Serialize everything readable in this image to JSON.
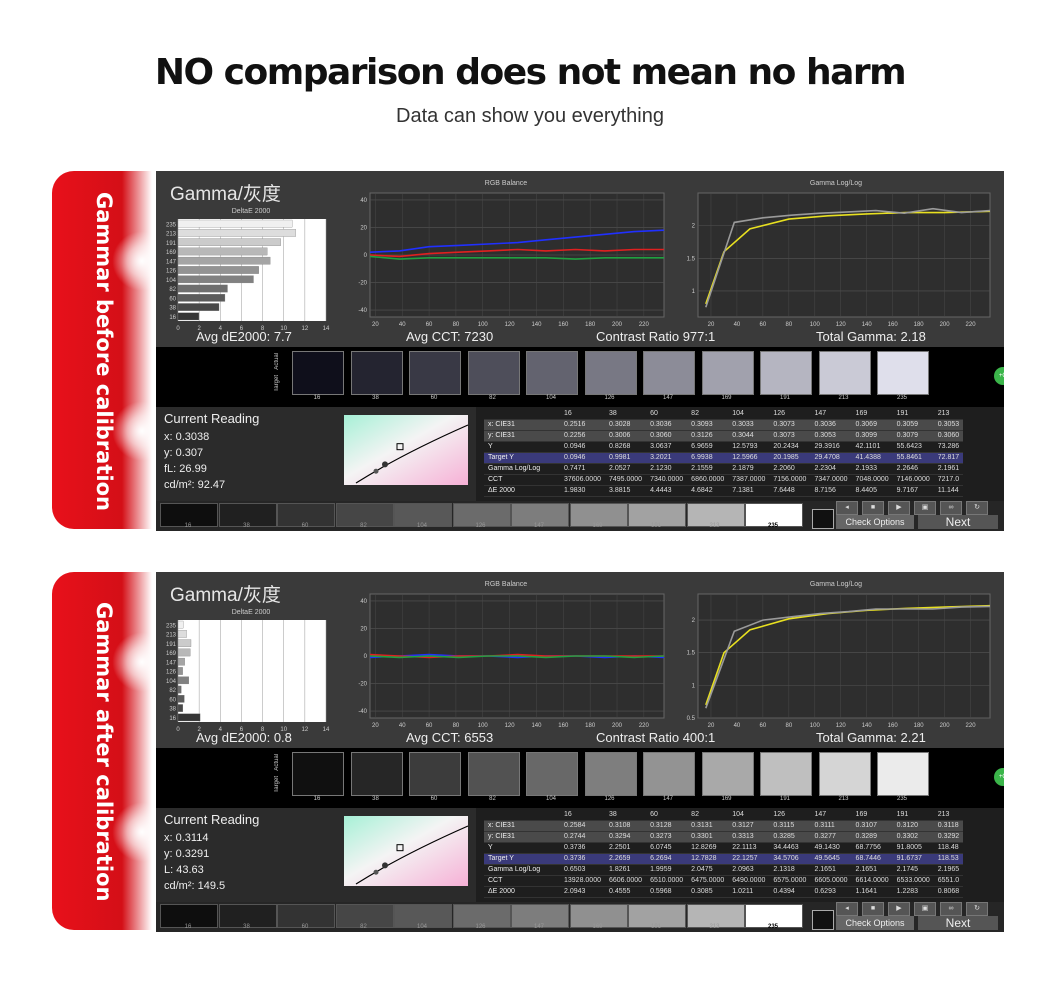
{
  "headline": "NO comparison does not mean  no harm",
  "subline": "Data can show you everything",
  "sections": [
    {
      "label": "Gammar before calibration",
      "title": "Gamma/灰度",
      "de_chart_title": "DeltaE 2000",
      "rgb_title": "RGB Balance",
      "gamma_title": "Gamma Log/Log",
      "stats": {
        "de": "Avg dE2000: 7.7",
        "cct": "Avg CCT: 7230",
        "contrast": "Contrast Ratio  977:1",
        "gamma": "Total Gamma: 2.18"
      },
      "reading": {
        "title": "Current Reading",
        "x": "x: 0.3038",
        "y": "y: 0.307",
        "fl": "fL: 26.99",
        "cd": "cd/m²: 92.47"
      },
      "swatch_label_actual": "Actual",
      "swatch_label_target": "Target",
      "swatch_levels": [
        "16",
        "38",
        "60",
        "82",
        "104",
        "126",
        "147",
        "169",
        "191",
        "213",
        "235"
      ],
      "table_header": [
        "16",
        "38",
        "60",
        "82",
        "104",
        "126",
        "147",
        "169",
        "191",
        "213"
      ],
      "table_rows": [
        {
          "label": "x: CIE31",
          "values": [
            "0.2516",
            "0.3028",
            "0.3036",
            "0.3093",
            "0.3033",
            "0.3073",
            "0.3036",
            "0.3069",
            "0.3059",
            "0.3053"
          ]
        },
        {
          "label": "y: CIE31",
          "values": [
            "0.2256",
            "0.3006",
            "0.3060",
            "0.3126",
            "0.3044",
            "0.3073",
            "0.3053",
            "0.3099",
            "0.3079",
            "0.3060"
          ]
        },
        {
          "label": "Y",
          "values": [
            "0.0946",
            "0.8268",
            "3.0637",
            "6.9659",
            "12.5793",
            "20.2434",
            "29.3916",
            "42.1101",
            "55.6423",
            "73.286"
          ]
        },
        {
          "label": "Target Y",
          "values": [
            "0.0946",
            "0.9981",
            "3.2021",
            "6.9938",
            "12.5966",
            "20.1985",
            "29.4708",
            "41.4388",
            "55.8461",
            "72.817"
          ]
        },
        {
          "label": "Gamma Log/Log",
          "values": [
            "0.7471",
            "2.0527",
            "2.1230",
            "2.1559",
            "2.1879",
            "2.2060",
            "2.2304",
            "2.1933",
            "2.2646",
            "2.1961"
          ]
        },
        {
          "label": "CCT",
          "values": [
            "37606.0000",
            "7495.0000",
            "7340.0000",
            "6860.0000",
            "7387.0000",
            "7156.0000",
            "7347.0000",
            "7048.0000",
            "7146.0000",
            "7217.0"
          ]
        },
        {
          "label": "ΔE 2000",
          "values": [
            "1.9830",
            "3.8815",
            "4.4443",
            "4.6842",
            "7.1381",
            "7.6448",
            "8.7156",
            "8.4405",
            "9.7167",
            "11.144"
          ]
        }
      ],
      "bottom_levels": [
        "16",
        "38",
        "60",
        "82",
        "104",
        "126",
        "147",
        "169",
        "191",
        "213",
        "235"
      ],
      "check_options": "Check Options",
      "next": "Next",
      "green_badge": "+G",
      "chart_data": {
        "de_bars": {
          "type": "bar",
          "categories": [
            "16",
            "38",
            "60",
            "82",
            "104",
            "126",
            "147",
            "169",
            "191",
            "213",
            "235"
          ],
          "values": [
            1.98,
            3.88,
            4.44,
            4.68,
            7.14,
            7.64,
            8.72,
            8.44,
            9.72,
            11.14,
            10.8
          ],
          "xlim": [
            0,
            14
          ],
          "xticks": [
            "0",
            "2",
            "4",
            "6",
            "8",
            "10",
            "12",
            "14"
          ]
        },
        "rgb": {
          "type": "line",
          "yticks": [
            "40",
            "20",
            "0",
            "-20",
            "-40"
          ],
          "xticks": [
            "20",
            "40",
            "60",
            "80",
            "100",
            "120",
            "140",
            "160",
            "180",
            "200",
            "220"
          ],
          "ylim": [
            -45,
            45
          ],
          "xlim": [
            16,
            235
          ],
          "series": [
            {
              "color": "#2030ff",
              "x": [
                16,
                38,
                60,
                82,
                104,
                126,
                147,
                169,
                191,
                213,
                235
              ],
              "y": [
                2,
                3,
                6,
                7,
                8,
                9,
                11,
                13,
                15,
                17,
                18
              ]
            },
            {
              "color": "#e02020",
              "x": [
                16,
                38,
                60,
                82,
                104,
                126,
                147,
                169,
                191,
                213,
                235
              ],
              "y": [
                0,
                -1,
                1,
                2,
                3,
                4,
                3,
                4,
                3,
                4,
                4
              ]
            },
            {
              "color": "#20a040",
              "x": [
                16,
                38,
                60,
                82,
                104,
                126,
                147,
                169,
                191,
                213,
                235
              ],
              "y": [
                -1,
                -3,
                -2,
                -2,
                -2,
                -2,
                -2,
                -3,
                -2,
                -2,
                -2
              ]
            }
          ]
        },
        "gamma": {
          "type": "line",
          "yticks": [
            "2",
            "1.5",
            "1"
          ],
          "xticks": [
            "20",
            "40",
            "60",
            "80",
            "100",
            "120",
            "140",
            "160",
            "180",
            "200",
            "220"
          ],
          "ylim": [
            0.6,
            2.5
          ],
          "xlim": [
            10,
            235
          ],
          "series": [
            {
              "color": "#e8e020",
              "x": [
                16,
                30,
                50,
                80,
                110,
                140,
                170,
                200,
                235
              ],
              "y": [
                0.8,
                1.6,
                1.95,
                2.1,
                2.15,
                2.18,
                2.2,
                2.2,
                2.22
              ]
            },
            {
              "color": "#9a9a9a",
              "x": [
                16,
                38,
                60,
                82,
                104,
                126,
                147,
                169,
                191,
                213,
                235
              ],
              "y": [
                0.75,
                2.05,
                2.12,
                2.16,
                2.19,
                2.21,
                2.23,
                2.19,
                2.26,
                2.2,
                2.23
              ]
            }
          ]
        }
      }
    },
    {
      "label": "Gammar after calibration",
      "title": "Gamma/灰度",
      "de_chart_title": "DeltaE 2000",
      "rgb_title": "RGB Balance",
      "gamma_title": "Gamma Log/Log",
      "stats": {
        "de": "Avg dE2000: 0.8",
        "cct": "Avg CCT: 6553",
        "contrast": "Contrast Ratio  400:1",
        "gamma": "Total Gamma: 2.21"
      },
      "reading": {
        "title": "Current Reading",
        "x": "x: 0.3114",
        "y": "y: 0.3291",
        "fl": "L: 43.63",
        "cd": "cd/m²: 149.5"
      },
      "swatch_label_actual": "Actual",
      "swatch_label_target": "Target",
      "swatch_levels": [
        "16",
        "38",
        "60",
        "82",
        "104",
        "126",
        "147",
        "169",
        "191",
        "213",
        "235"
      ],
      "table_header": [
        "16",
        "38",
        "60",
        "82",
        "104",
        "126",
        "147",
        "169",
        "191",
        "213"
      ],
      "table_rows": [
        {
          "label": "x: CIE31",
          "values": [
            "0.2584",
            "0.3108",
            "0.3128",
            "0.3131",
            "0.3127",
            "0.3115",
            "0.3111",
            "0.3107",
            "0.3120",
            "0.3118"
          ]
        },
        {
          "label": "y: CIE31",
          "values": [
            "0.2744",
            "0.3294",
            "0.3273",
            "0.3301",
            "0.3313",
            "0.3285",
            "0.3277",
            "0.3289",
            "0.3302",
            "0.3292"
          ]
        },
        {
          "label": "Y",
          "values": [
            "0.3736",
            "2.2501",
            "6.0745",
            "12.8269",
            "22.1113",
            "34.4463",
            "49.1430",
            "68.7756",
            "91.8005",
            "118.48"
          ]
        },
        {
          "label": "Target Y",
          "values": [
            "0.3736",
            "2.2659",
            "6.2694",
            "12.7828",
            "22.1257",
            "34.5706",
            "49.5645",
            "68.7446",
            "91.6737",
            "118.53"
          ]
        },
        {
          "label": "Gamma Log/Log",
          "values": [
            "0.6503",
            "1.8261",
            "1.9959",
            "2.0475",
            "2.0963",
            "2.1318",
            "2.1651",
            "2.1651",
            "2.1745",
            "2.1965"
          ]
        },
        {
          "label": "CCT",
          "values": [
            "13928.0000",
            "6606.0000",
            "6510.0000",
            "6475.0000",
            "6490.0000",
            "6575.0000",
            "6605.0000",
            "6614.0000",
            "6533.0000",
            "6551.0"
          ]
        },
        {
          "label": "ΔE 2000",
          "values": [
            "2.0943",
            "0.4555",
            "0.5968",
            "0.3085",
            "1.0211",
            "0.4394",
            "0.6293",
            "1.1641",
            "1.2283",
            "0.8068"
          ]
        }
      ],
      "bottom_levels": [
        "16",
        "38",
        "60",
        "82",
        "104",
        "126",
        "147",
        "169",
        "191",
        "213",
        "235"
      ],
      "check_options": "Check Options",
      "next": "Next",
      "green_badge": "+G",
      "chart_data": {
        "de_bars": {
          "type": "bar",
          "categories": [
            "16",
            "38",
            "60",
            "82",
            "104",
            "126",
            "147",
            "169",
            "191",
            "213",
            "235"
          ],
          "values": [
            2.09,
            0.46,
            0.6,
            0.31,
            1.02,
            0.44,
            0.63,
            1.16,
            1.23,
            0.81,
            0.5
          ],
          "xlim": [
            0,
            14
          ],
          "xticks": [
            "0",
            "2",
            "4",
            "6",
            "8",
            "10",
            "12",
            "14"
          ]
        },
        "rgb": {
          "type": "line",
          "yticks": [
            "40",
            "20",
            "0",
            "-20",
            "-40"
          ],
          "xticks": [
            "20",
            "40",
            "60",
            "80",
            "100",
            "120",
            "140",
            "160",
            "180",
            "200",
            "220"
          ],
          "ylim": [
            -45,
            45
          ],
          "xlim": [
            16,
            235
          ],
          "series": [
            {
              "color": "#2030ff",
              "x": [
                16,
                38,
                60,
                82,
                104,
                126,
                147,
                169,
                191,
                213,
                235
              ],
              "y": [
                -1,
                0,
                1,
                0,
                0,
                -1,
                0,
                0,
                -1,
                0,
                -1
              ]
            },
            {
              "color": "#e02020",
              "x": [
                16,
                38,
                60,
                82,
                104,
                126,
                147,
                169,
                191,
                213,
                235
              ],
              "y": [
                1,
                0,
                -1,
                0,
                0,
                1,
                0,
                0,
                0,
                0,
                0
              ]
            },
            {
              "color": "#20a040",
              "x": [
                16,
                38,
                60,
                82,
                104,
                126,
                147,
                169,
                191,
                213,
                235
              ],
              "y": [
                0,
                -1,
                0,
                -1,
                0,
                0,
                -1,
                0,
                0,
                -1,
                0
              ]
            }
          ]
        },
        "gamma": {
          "type": "line",
          "yticks": [
            "2",
            "1.5",
            "1",
            "0.5"
          ],
          "xticks": [
            "20",
            "40",
            "60",
            "80",
            "100",
            "120",
            "140",
            "160",
            "180",
            "200",
            "220"
          ],
          "ylim": [
            0.5,
            2.4
          ],
          "xlim": [
            10,
            235
          ],
          "series": [
            {
              "color": "#e8e020",
              "x": [
                16,
                30,
                50,
                80,
                110,
                140,
                170,
                200,
                235
              ],
              "y": [
                0.7,
                1.5,
                1.85,
                2.02,
                2.1,
                2.15,
                2.18,
                2.2,
                2.22
              ]
            },
            {
              "color": "#9a9a9a",
              "x": [
                16,
                38,
                60,
                82,
                104,
                126,
                147,
                169,
                191,
                213,
                235
              ],
              "y": [
                0.65,
                1.83,
                2.0,
                2.05,
                2.1,
                2.13,
                2.17,
                2.17,
                2.17,
                2.2,
                2.21
              ]
            }
          ]
        }
      }
    }
  ]
}
